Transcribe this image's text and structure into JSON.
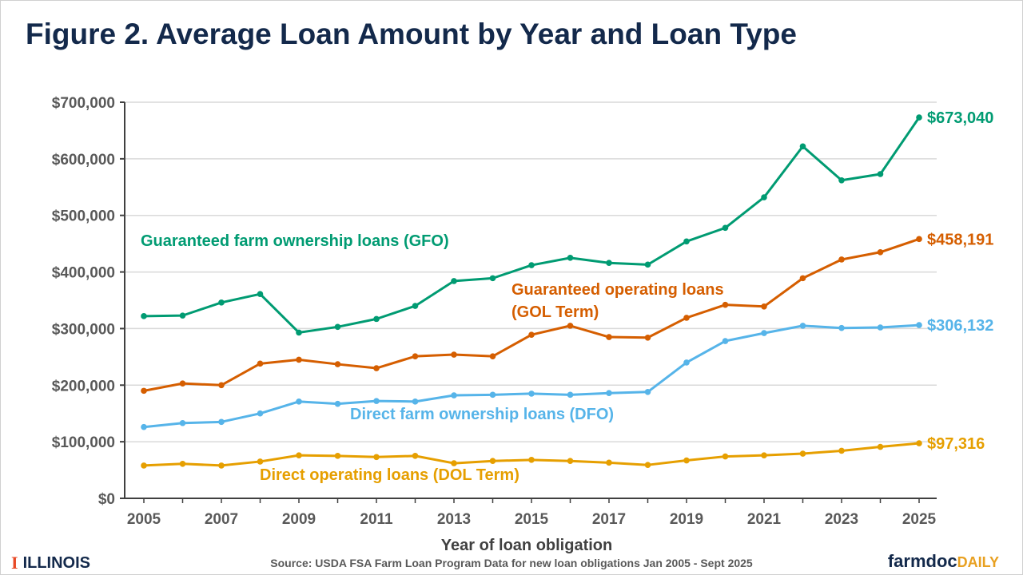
{
  "chart_data": {
    "type": "line",
    "title": "Figure 2. Average Loan Amount by Year and Loan Type",
    "xlabel": "Year of loan obligation",
    "ylabel": "",
    "x": [
      2005,
      2006,
      2007,
      2008,
      2009,
      2010,
      2011,
      2012,
      2013,
      2014,
      2015,
      2016,
      2017,
      2018,
      2019,
      2020,
      2021,
      2022,
      2023,
      2024,
      2025
    ],
    "x_tick_labels": [
      "2005",
      "2007",
      "2009",
      "2011",
      "2013",
      "2015",
      "2017",
      "2019",
      "2021",
      "2023",
      "2025"
    ],
    "y_tick_labels": [
      "$0",
      "$100,000",
      "$200,000",
      "$300,000",
      "$400,000",
      "$500,000",
      "$600,000",
      "$700,000"
    ],
    "ylim": [
      0,
      700000
    ],
    "grid": "horizontal",
    "series": [
      {
        "name": "Guaranteed farm ownership loans (GFO)",
        "color": "#009b72",
        "values": [
          322000,
          323000,
          346000,
          361000,
          293000,
          303000,
          317000,
          340000,
          384000,
          389000,
          412000,
          425000,
          416000,
          413000,
          454000,
          478000,
          532000,
          622000,
          562000,
          573000,
          673040
        ],
        "end_label": "$673,040"
      },
      {
        "name": "Guaranteed operating loans (GOL Term)",
        "color": "#d55e00",
        "values": [
          190000,
          203000,
          200000,
          238000,
          245000,
          237000,
          230000,
          251000,
          254000,
          251000,
          289000,
          305000,
          285000,
          284000,
          319000,
          342000,
          339000,
          389000,
          422000,
          435000,
          458191
        ],
        "end_label": "$458,191"
      },
      {
        "name": "Direct farm ownership loans (DFO)",
        "color": "#56b4e9",
        "values": [
          126000,
          133000,
          135000,
          150000,
          171000,
          167000,
          172000,
          171000,
          182000,
          183000,
          185000,
          183000,
          186000,
          188000,
          240000,
          278000,
          292000,
          305000,
          301000,
          302000,
          306132
        ],
        "end_label": "$306,132"
      },
      {
        "name": "Direct operating loans (DOL Term)",
        "color": "#e69f00",
        "values": [
          58000,
          61000,
          58000,
          65000,
          76000,
          75000,
          73000,
          75000,
          62000,
          66000,
          68000,
          66000,
          63000,
          59000,
          67000,
          74000,
          76000,
          79000,
          84000,
          91000,
          97316
        ],
        "end_label": "$97,316"
      }
    ],
    "annotations": {
      "gfo": "Guaranteed farm ownership loans (GFO)",
      "gol_line1": "Guaranteed operating loans",
      "gol_line2": "(GOL Term)",
      "dfo": "Direct farm ownership loans (DFO)",
      "dol": "Direct operating loans (DOL Term)"
    }
  },
  "footer": {
    "source": "Source: USDA FSA Farm Loan Program Data for new loan obligations Jan 2005 - Sept 2025",
    "left_logo": "ILLINOIS",
    "left_logo_mark": "I",
    "right_logo_main": "farmdoc",
    "right_logo_accent": "DAILY"
  }
}
